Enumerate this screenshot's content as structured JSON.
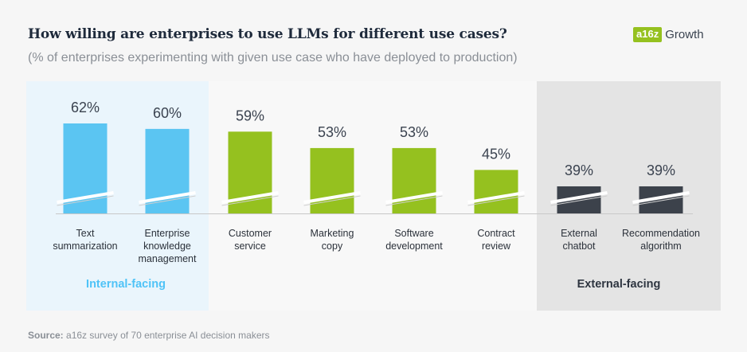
{
  "title": "How willing are enterprises to use LLMs for different use cases?",
  "subtitle": "(% of enterprises experimenting with given use case who have deployed to production)",
  "logo": {
    "badge": "a16z",
    "text": "Growth"
  },
  "source": {
    "label": "Source:",
    "text": "a16z survey of 70 enterprise AI decision makers"
  },
  "colors": {
    "internal": "#5bc5f2",
    "middle": "#95c11f",
    "external": "#3c424b",
    "internal_bg": "#eaf5fc",
    "middle_bg": "#f8f8f8",
    "external_bg": "#e4e4e4",
    "internal_label": "#4fc3f7",
    "external_label": "#2e3540"
  },
  "chart_data": {
    "type": "bar",
    "categories": [
      "Text summarization",
      "Enterprise knowledge management",
      "Customer service",
      "Marketing copy",
      "Software development",
      "Contract review",
      "External chatbot",
      "Recommendation algorithm"
    ],
    "category_lines": [
      [
        "Text",
        "summarization"
      ],
      [
        "Enterprise",
        "knowledge",
        "management"
      ],
      [
        "Customer",
        "service"
      ],
      [
        "Marketing",
        "copy"
      ],
      [
        "Software",
        "development"
      ],
      [
        "Contract",
        "review"
      ],
      [
        "External",
        "chatbot"
      ],
      [
        "Recommendation",
        "algorithm"
      ]
    ],
    "values": [
      62,
      60,
      59,
      53,
      53,
      45,
      39,
      39
    ],
    "value_labels": [
      "62%",
      "60%",
      "59%",
      "53%",
      "53%",
      "45%",
      "39%",
      "39%"
    ],
    "groups": [
      "internal",
      "internal",
      "middle",
      "middle",
      "middle",
      "middle",
      "external",
      "external"
    ],
    "group_labels": {
      "internal": "Internal-facing",
      "external": "External-facing"
    },
    "axis_break": true
  }
}
